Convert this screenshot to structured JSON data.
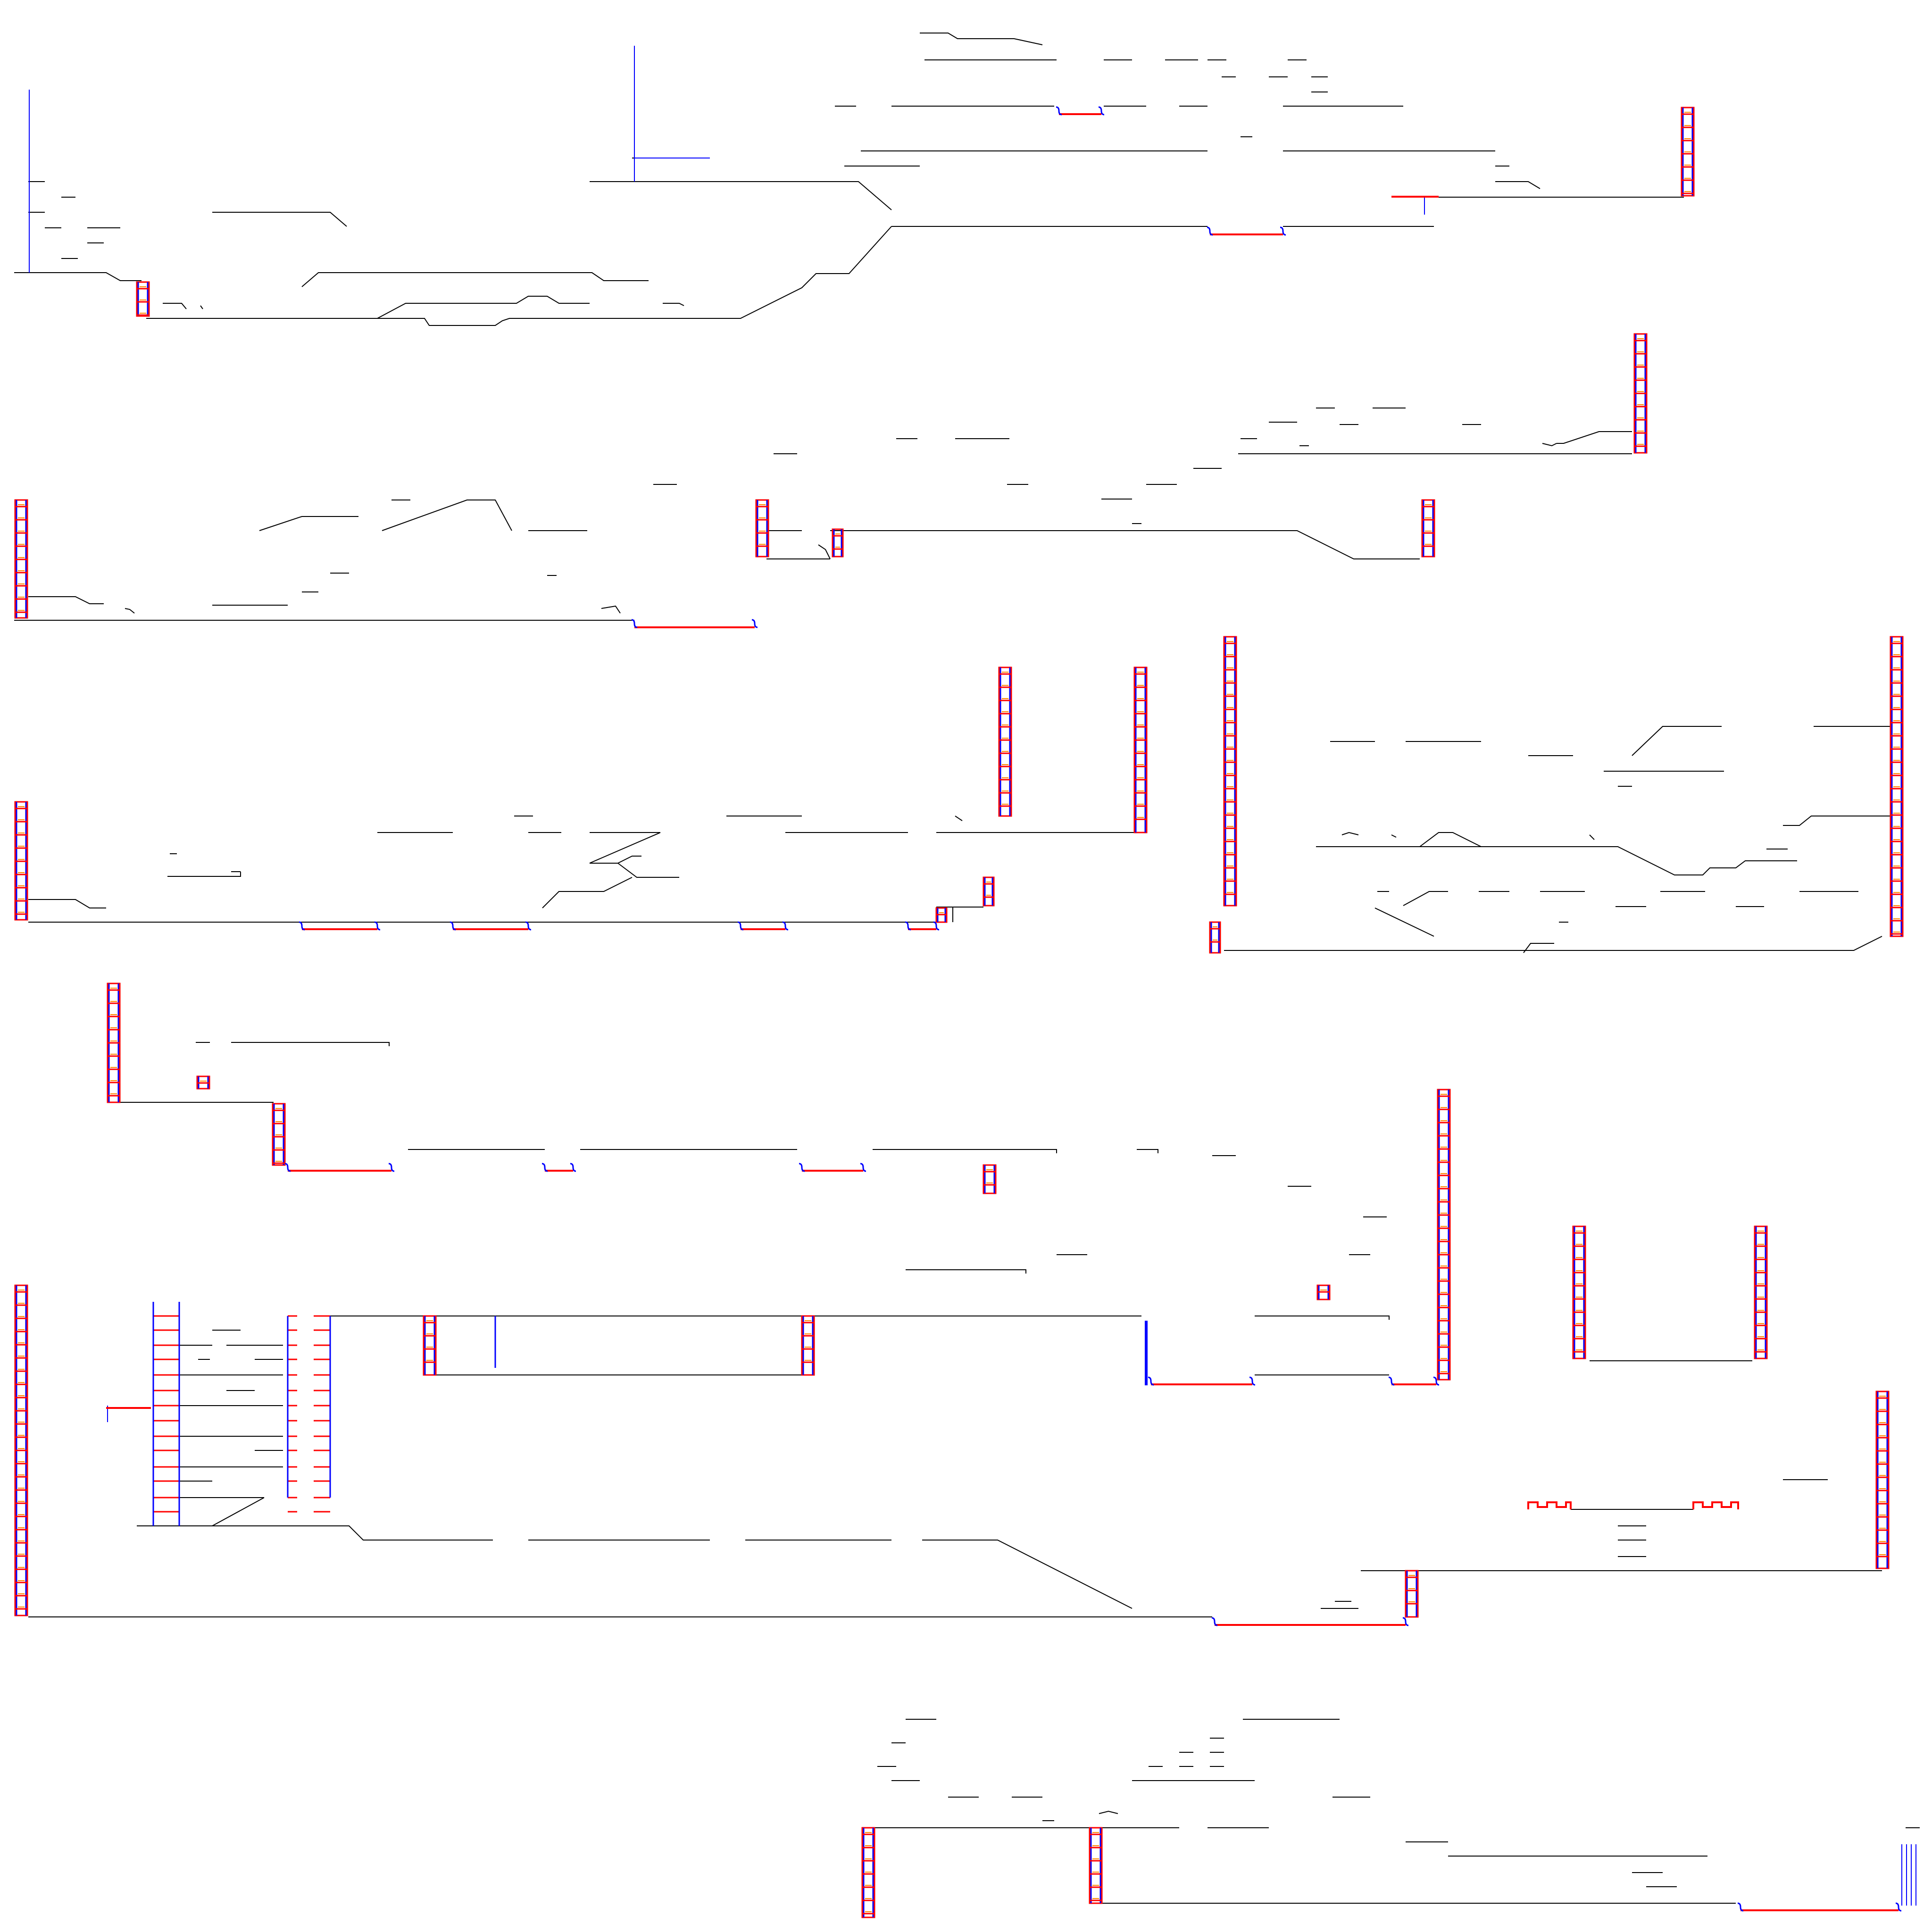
{
  "map": {
    "colors": {
      "background": "#ffffff",
      "platform": "#000000",
      "wall": "#0000ff",
      "ladder_rail": "#ff0000",
      "ladder_step": "#ff8800",
      "spring": "#ff0000"
    }
  }
}
